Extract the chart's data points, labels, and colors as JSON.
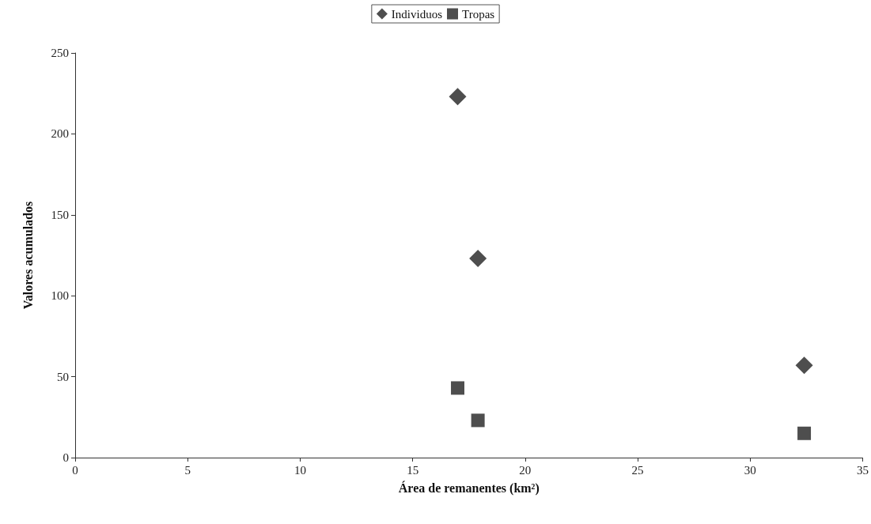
{
  "chart_data": {
    "type": "scatter",
    "xlabel": "Área de remanentes (km²)",
    "ylabel": "Valores acumulados",
    "xlim": [
      0,
      35
    ],
    "xticks": [
      0,
      5,
      10,
      15,
      20,
      25,
      30,
      35
    ],
    "ylim": [
      0,
      250
    ],
    "yticks": [
      0,
      50,
      100,
      150,
      200,
      250
    ],
    "grid": false,
    "legend": "top",
    "series": [
      {
        "name": "Individuos",
        "color": "#222222",
        "marker": "diamond",
        "x": [
          17,
          17.9,
          32.4
        ],
        "values": [
          223,
          123,
          57
        ]
      },
      {
        "name": "Tropas",
        "color": "#222222",
        "marker": "square",
        "x": [
          17,
          17.9,
          32.4
        ],
        "values": [
          43,
          23,
          15
        ]
      }
    ]
  }
}
